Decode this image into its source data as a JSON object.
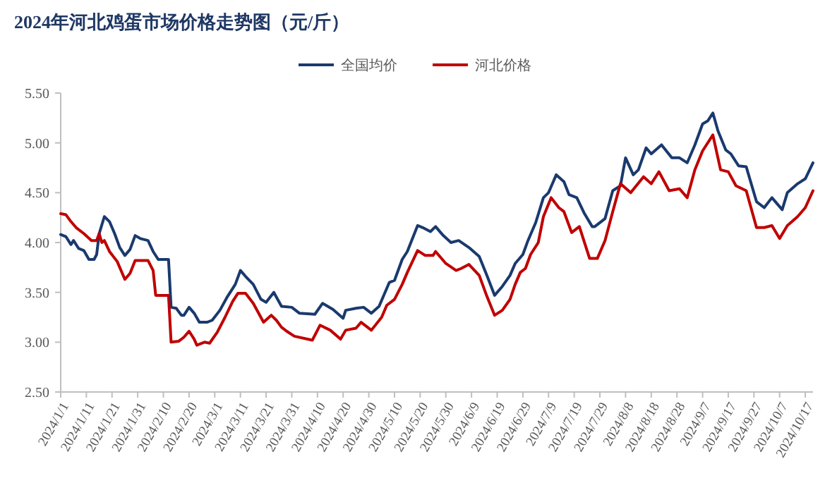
{
  "chart_data": {
    "type": "line",
    "title": "2024年河北鸡蛋市场价格走势图（元/斤）",
    "legend": "top",
    "grid": false,
    "xlim": [
      "2024-01-01",
      "2024-10-20"
    ],
    "xticks": [
      {
        "value": "2024-01-01",
        "label": "2024/1/1"
      },
      {
        "value": "2024-01-11",
        "label": "2024/1/11"
      },
      {
        "value": "2024-01-21",
        "label": "2024/1/21"
      },
      {
        "value": "2024-01-31",
        "label": "2024/1/31"
      },
      {
        "value": "2024-02-10",
        "label": "2024/2/10"
      },
      {
        "value": "2024-02-20",
        "label": "2024/2/20"
      },
      {
        "value": "2024-03-01",
        "label": "2024/3/1"
      },
      {
        "value": "2024-03-11",
        "label": "2024/3/11"
      },
      {
        "value": "2024-03-21",
        "label": "2024/3/21"
      },
      {
        "value": "2024-03-31",
        "label": "2024/3/31"
      },
      {
        "value": "2024-04-10",
        "label": "2024/4/10"
      },
      {
        "value": "2024-04-20",
        "label": "2024/4/20"
      },
      {
        "value": "2024-04-30",
        "label": "2024/4/30"
      },
      {
        "value": "2024-05-10",
        "label": "2024/5/10"
      },
      {
        "value": "2024-05-20",
        "label": "2024/5/20"
      },
      {
        "value": "2024-05-30",
        "label": "2024/5/30"
      },
      {
        "value": "2024-06-09",
        "label": "2024/6/9"
      },
      {
        "value": "2024-06-19",
        "label": "2024/6/19"
      },
      {
        "value": "2024-06-29",
        "label": "2024/6/29"
      },
      {
        "value": "2024-07-09",
        "label": "2024/7/9"
      },
      {
        "value": "2024-07-19",
        "label": "2024/7/19"
      },
      {
        "value": "2024-07-29",
        "label": "2024/7/29"
      },
      {
        "value": "2024-08-08",
        "label": "2024/8/8"
      },
      {
        "value": "2024-08-18",
        "label": "2024/8/18"
      },
      {
        "value": "2024-08-28",
        "label": "2024/8/28"
      },
      {
        "value": "2024-09-07",
        "label": "2024/9/7"
      },
      {
        "value": "2024-09-17",
        "label": "2024/9/17"
      },
      {
        "value": "2024-09-27",
        "label": "2024/9/27"
      },
      {
        "value": "2024-10-07",
        "label": "2024/10/7"
      },
      {
        "value": "2024-10-17",
        "label": "2024/10/17"
      }
    ],
    "ylim": [
      2.5,
      5.5
    ],
    "yticks": [
      {
        "value": 2.5,
        "label": "2.50"
      },
      {
        "value": 3,
        "label": "3.00"
      },
      {
        "value": 3.5,
        "label": "3.50"
      },
      {
        "value": 4,
        "label": "4.00"
      },
      {
        "value": 4.5,
        "label": "4.50"
      },
      {
        "value": 5,
        "label": "5.00"
      },
      {
        "value": 5.5,
        "label": "5.50"
      }
    ],
    "series": [
      {
        "name": "全国均价",
        "color": "#1a3a6e",
        "x": [
          "2024-01-01",
          "2024-01-03",
          "2024-01-05",
          "2024-01-06",
          "2024-01-08",
          "2024-01-10",
          "2024-01-12",
          "2024-01-14",
          "2024-01-15",
          "2024-01-16",
          "2024-01-18",
          "2024-01-20",
          "2024-01-22",
          "2024-01-24",
          "2024-01-26",
          "2024-01-28",
          "2024-01-30",
          "2024-02-01",
          "2024-02-04",
          "2024-02-06",
          "2024-02-08",
          "2024-02-12",
          "2024-02-13",
          "2024-02-15",
          "2024-02-17",
          "2024-02-18",
          "2024-02-20",
          "2024-02-22",
          "2024-02-24",
          "2024-02-27",
          "2024-02-29",
          "2024-03-03",
          "2024-03-06",
          "2024-03-09",
          "2024-03-11",
          "2024-03-13",
          "2024-03-16",
          "2024-03-19",
          "2024-03-21",
          "2024-03-24",
          "2024-03-27",
          "2024-03-31",
          "2024-04-03",
          "2024-04-09",
          "2024-04-12",
          "2024-04-16",
          "2024-04-20",
          "2024-04-21",
          "2024-04-25",
          "2024-04-28",
          "2024-05-01",
          "2024-05-04",
          "2024-05-08",
          "2024-05-10",
          "2024-05-13",
          "2024-05-15",
          "2024-05-19",
          "2024-05-21",
          "2024-05-24",
          "2024-05-26",
          "2024-05-29",
          "2024-06-01",
          "2024-06-04",
          "2024-06-08",
          "2024-06-12",
          "2024-06-15",
          "2024-06-18",
          "2024-06-21",
          "2024-06-24",
          "2024-06-26",
          "2024-06-29",
          "2024-07-01",
          "2024-07-04",
          "2024-07-07",
          "2024-07-09",
          "2024-07-12",
          "2024-07-15",
          "2024-07-17",
          "2024-07-20",
          "2024-07-23",
          "2024-07-26",
          "2024-07-27",
          "2024-07-31",
          "2024-08-03",
          "2024-08-06",
          "2024-08-08",
          "2024-08-11",
          "2024-08-13",
          "2024-08-16",
          "2024-08-18",
          "2024-08-22",
          "2024-08-26",
          "2024-08-29",
          "2024-09-01",
          "2024-09-04",
          "2024-09-07",
          "2024-09-09",
          "2024-09-11",
          "2024-09-13",
          "2024-09-16",
          "2024-09-18",
          "2024-09-21",
          "2024-09-24",
          "2024-09-28",
          "2024-10-01",
          "2024-10-04",
          "2024-10-08",
          "2024-10-10",
          "2024-10-14",
          "2024-10-17",
          "2024-10-20"
        ],
        "values": [
          4.08,
          4.06,
          3.98,
          4.02,
          3.94,
          3.92,
          3.83,
          3.83,
          3.88,
          4.09,
          4.26,
          4.21,
          4.09,
          3.95,
          3.87,
          3.93,
          4.07,
          4.04,
          4.02,
          3.91,
          3.83,
          3.83,
          3.35,
          3.34,
          3.27,
          3.27,
          3.35,
          3.29,
          3.2,
          3.2,
          3.22,
          3.32,
          3.46,
          3.58,
          3.72,
          3.66,
          3.58,
          3.43,
          3.4,
          3.5,
          3.36,
          3.35,
          3.29,
          3.28,
          3.39,
          3.33,
          3.24,
          3.32,
          3.34,
          3.35,
          3.29,
          3.36,
          3.6,
          3.62,
          3.83,
          3.91,
          4.17,
          4.15,
          4.11,
          4.16,
          4.07,
          4.0,
          4.02,
          3.95,
          3.86,
          3.67,
          3.47,
          3.56,
          3.67,
          3.79,
          3.88,
          4.02,
          4.2,
          4.45,
          4.5,
          4.68,
          4.61,
          4.48,
          4.45,
          4.29,
          4.16,
          4.16,
          4.24,
          4.52,
          4.57,
          4.85,
          4.68,
          4.73,
          4.95,
          4.89,
          4.98,
          4.85,
          4.85,
          4.8,
          4.98,
          5.19,
          5.22,
          5.3,
          5.12,
          4.93,
          4.89,
          4.77,
          4.76,
          4.41,
          4.35,
          4.45,
          4.33,
          4.5,
          4.59,
          4.64,
          4.8
        ]
      },
      {
        "name": "河北价格",
        "color": "#c00000",
        "x": [
          "2024-01-01",
          "2024-01-03",
          "2024-01-05",
          "2024-01-07",
          "2024-01-10",
          "2024-01-13",
          "2024-01-15",
          "2024-01-16",
          "2024-01-17",
          "2024-01-18",
          "2024-01-20",
          "2024-01-23",
          "2024-01-26",
          "2024-01-28",
          "2024-01-30",
          "2024-02-04",
          "2024-02-06",
          "2024-02-07",
          "2024-02-12",
          "2024-02-13",
          "2024-02-16",
          "2024-02-18",
          "2024-02-20",
          "2024-02-22",
          "2024-02-23",
          "2024-02-26",
          "2024-02-28",
          "2024-03-02",
          "2024-03-05",
          "2024-03-08",
          "2024-03-10",
          "2024-03-13",
          "2024-03-16",
          "2024-03-20",
          "2024-03-23",
          "2024-03-25",
          "2024-03-27",
          "2024-03-29",
          "2024-04-01",
          "2024-04-08",
          "2024-04-11",
          "2024-04-15",
          "2024-04-19",
          "2024-04-21",
          "2024-04-25",
          "2024-04-27",
          "2024-05-01",
          "2024-05-05",
          "2024-05-07",
          "2024-05-10",
          "2024-05-13",
          "2024-05-15",
          "2024-05-19",
          "2024-05-22",
          "2024-05-25",
          "2024-05-26",
          "2024-05-30",
          "2024-06-03",
          "2024-06-05",
          "2024-06-08",
          "2024-06-12",
          "2024-06-15",
          "2024-06-18",
          "2024-06-21",
          "2024-06-24",
          "2024-06-26",
          "2024-06-28",
          "2024-06-30",
          "2024-07-02",
          "2024-07-05",
          "2024-07-07",
          "2024-07-10",
          "2024-07-13",
          "2024-07-15",
          "2024-07-18",
          "2024-07-21",
          "2024-07-25",
          "2024-07-28",
          "2024-07-31",
          "2024-08-03",
          "2024-08-06",
          "2024-08-10",
          "2024-08-15",
          "2024-08-18",
          "2024-08-21",
          "2024-08-25",
          "2024-08-29",
          "2024-09-01",
          "2024-09-04",
          "2024-09-07",
          "2024-09-11",
          "2024-09-14",
          "2024-09-17",
          "2024-09-20",
          "2024-09-24",
          "2024-09-28",
          "2024-10-01",
          "2024-10-04",
          "2024-10-07",
          "2024-10-10",
          "2024-10-14",
          "2024-10-17",
          "2024-10-20"
        ],
        "values": [
          4.29,
          4.28,
          4.21,
          4.15,
          4.09,
          4.02,
          4.02,
          4.09,
          4.0,
          4.02,
          3.91,
          3.81,
          3.63,
          3.69,
          3.82,
          3.82,
          3.72,
          3.47,
          3.47,
          3.0,
          3.01,
          3.05,
          3.11,
          3.03,
          2.97,
          3.0,
          2.99,
          3.1,
          3.25,
          3.41,
          3.49,
          3.49,
          3.39,
          3.2,
          3.27,
          3.22,
          3.15,
          3.11,
          3.06,
          3.02,
          3.17,
          3.12,
          3.03,
          3.12,
          3.14,
          3.2,
          3.12,
          3.25,
          3.37,
          3.43,
          3.58,
          3.7,
          3.92,
          3.87,
          3.87,
          3.91,
          3.79,
          3.72,
          3.74,
          3.78,
          3.67,
          3.46,
          3.27,
          3.32,
          3.43,
          3.58,
          3.7,
          3.74,
          3.88,
          4.0,
          4.26,
          4.45,
          4.35,
          4.31,
          4.1,
          4.16,
          3.84,
          3.84,
          4.02,
          4.31,
          4.59,
          4.5,
          4.66,
          4.59,
          4.71,
          4.52,
          4.54,
          4.45,
          4.73,
          4.92,
          5.08,
          4.73,
          4.71,
          4.57,
          4.52,
          4.15,
          4.15,
          4.17,
          4.04,
          4.17,
          4.26,
          4.35,
          4.52
        ]
      }
    ]
  }
}
